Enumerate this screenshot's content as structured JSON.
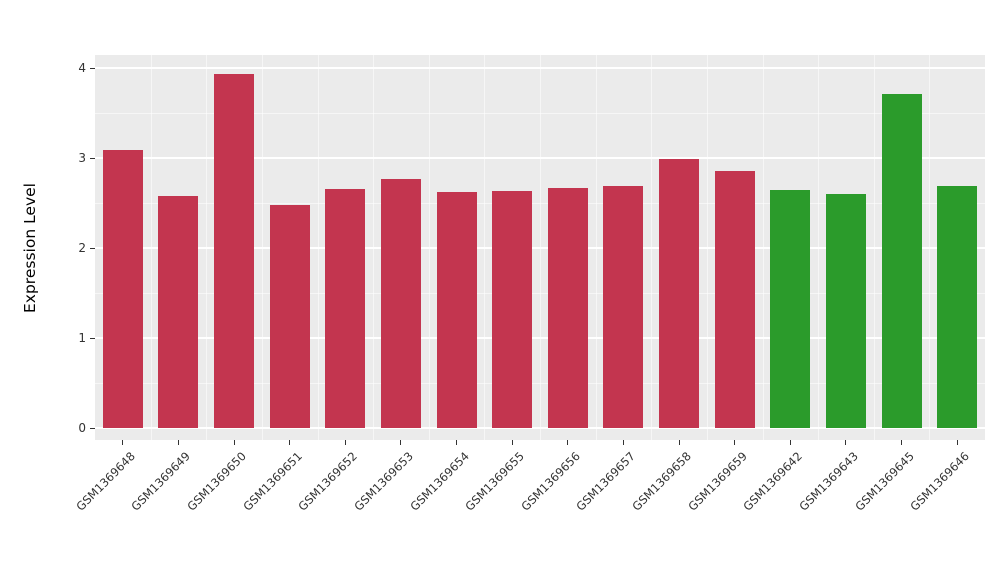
{
  "chart_data": {
    "type": "bar",
    "title": "",
    "ylabel": "Expression Level",
    "xlabel": "",
    "ylim": [
      0,
      4
    ],
    "yticks": [
      0,
      1,
      2,
      3,
      4
    ],
    "grid": "on",
    "legend": "none",
    "categories": [
      "GSM1369648",
      "GSM1369649",
      "GSM1369650",
      "GSM1369651",
      "GSM1369652",
      "GSM1369653",
      "GSM1369654",
      "GSM1369655",
      "GSM1369656",
      "GSM1369657",
      "GSM1369658",
      "GSM1369659",
      "GSM1369642",
      "GSM1369643",
      "GSM1369645",
      "GSM1369646"
    ],
    "values": [
      3.09,
      2.58,
      3.93,
      2.48,
      2.66,
      2.77,
      2.62,
      2.63,
      2.67,
      2.69,
      2.99,
      2.86,
      2.64,
      2.6,
      3.71,
      2.69
    ],
    "bar_groups": [
      "red",
      "red",
      "red",
      "red",
      "red",
      "red",
      "red",
      "red",
      "red",
      "red",
      "red",
      "red",
      "green",
      "green",
      "green",
      "green"
    ],
    "group_colors": {
      "red": "#C3354F",
      "green": "#2B9B2B"
    },
    "panel_background": "#EBEBEB",
    "grid_color": "#FFFFFF",
    "tick_label_color": "#333333",
    "axis_title_color": "#000000"
  }
}
